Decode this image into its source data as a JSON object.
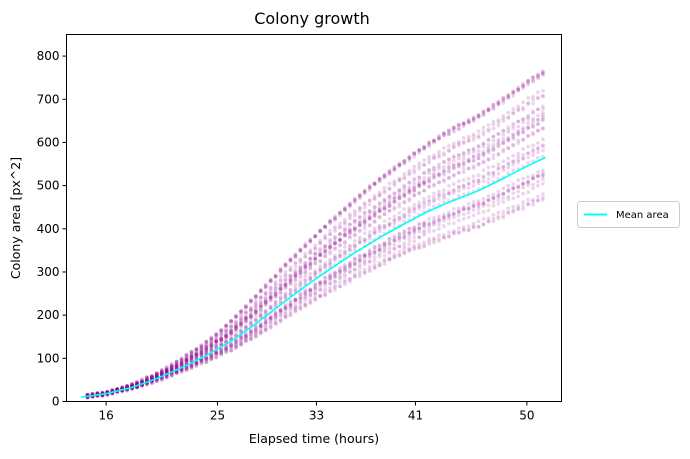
{
  "chart_data": {
    "type": "scatter",
    "title": "Colony growth",
    "xlabel": "Elapsed time (hours)",
    "ylabel": "Colony area [px^2]",
    "xlim": [
      12.8,
      52.8
    ],
    "ylim": [
      0,
      850
    ],
    "xticks": [
      16,
      25,
      33,
      41,
      50
    ],
    "yticks": [
      0,
      100,
      200,
      300,
      400,
      500,
      600,
      700,
      800
    ],
    "grid": false,
    "legend_position": "right, outside plot",
    "colors": {
      "points": "#8b008b",
      "mean_line": "#00ffff"
    },
    "series": [
      {
        "kind": "line",
        "name": "Mean area",
        "x": [
          14.0,
          16.0,
          18.0,
          20.0,
          22.0,
          24.0,
          26.0,
          28.0,
          30.0,
          32.0,
          34.0,
          36.0,
          38.0,
          40.0,
          42.0,
          44.0,
          46.0,
          48.0,
          50.0,
          51.5
        ],
        "y": [
          10,
          18,
          32,
          52,
          77,
          105,
          138,
          178,
          222,
          265,
          305,
          343,
          378,
          410,
          440,
          465,
          487,
          515,
          545,
          565
        ]
      },
      {
        "kind": "scatter",
        "description_of_spread": "individual colony areas sampled every ~0.4 h around the mean",
        "x_start": 14.5,
        "x_end": 51.5,
        "x_step": 0.4,
        "growth_factor_range": [
          0.83,
          1.43
        ]
      }
    ]
  }
}
